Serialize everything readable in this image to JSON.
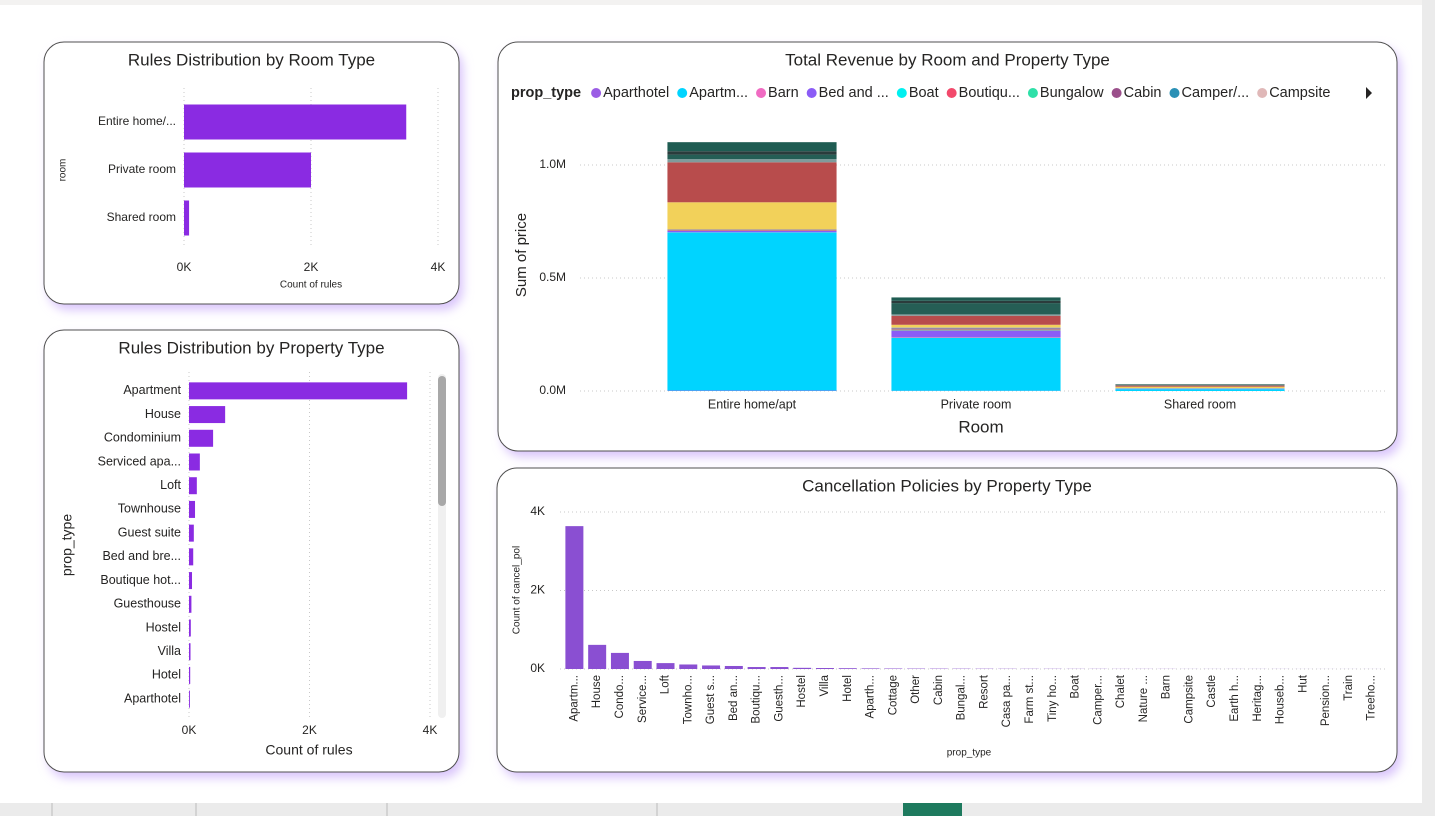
{
  "chart_data": [
    {
      "type": "bar",
      "orientation": "horizontal",
      "title": "Rules Distribution by Room Type",
      "categories": [
        "Entire home/...",
        "Private room",
        "Shared room"
      ],
      "values": [
        3500,
        2000,
        80
      ],
      "color": "#8a2be2",
      "xlim": [
        0,
        4000
      ],
      "xticks": [
        {
          "value": 0,
          "label": "0K"
        },
        {
          "value": 2000,
          "label": "2K"
        },
        {
          "value": 4000,
          "label": "4K"
        }
      ],
      "x_label": "Count of rules",
      "y_label": "room",
      "grid": true
    },
    {
      "type": "bar",
      "orientation": "horizontal",
      "title": "Rules Distribution by Property Type",
      "categories": [
        "Apartment",
        "House",
        "Condominium",
        "Serviced apa...",
        "Loft",
        "Townhouse",
        "Guest suite",
        "Bed and bre...",
        "Boutique hot...",
        "Guesthouse",
        "Hostel",
        "Villa",
        "Hotel",
        "Aparthotel"
      ],
      "values": [
        3620,
        600,
        400,
        180,
        130,
        100,
        80,
        70,
        50,
        40,
        30,
        25,
        20,
        15
      ],
      "color": "#8a2be2",
      "xlim": [
        0,
        4000
      ],
      "xticks": [
        {
          "value": 0,
          "label": "0K"
        },
        {
          "value": 2000,
          "label": "2K"
        },
        {
          "value": 4000,
          "label": "4K"
        }
      ],
      "x_label": "Count of rules",
      "y_label": "prop_type",
      "grid": true
    },
    {
      "type": "bar",
      "orientation": "vertical",
      "stacked": true,
      "title": "Total Revenue by Room and Property Type",
      "legend_title": "prop_type",
      "categories": [
        "Entire home/apt",
        "Private room",
        "Shared room"
      ],
      "series": [
        {
          "name": "Aparthotel",
          "color": "#9b5de5",
          "values": [
            2000,
            1000,
            0
          ]
        },
        {
          "name": "Apartm...",
          "color": "#00d4ff",
          "values": [
            700000,
            235000,
            8000
          ]
        },
        {
          "name": "Barn",
          "color": "#f06bc2",
          "values": [
            1000,
            3000,
            0
          ]
        },
        {
          "name": "Bed and ...",
          "color": "#8b5cf6",
          "values": [
            5000,
            27000,
            2000
          ]
        },
        {
          "name": "Boat",
          "color": "#00f0f0",
          "values": [
            0,
            2000,
            1000
          ]
        },
        {
          "name": "Boutiqu...",
          "color": "#f2496b",
          "values": [
            3000,
            5000,
            0
          ]
        },
        {
          "name": "Bungalow",
          "color": "#2ee0a8",
          "values": [
            1000,
            2000,
            500
          ]
        },
        {
          "name": "Cabin",
          "color": "#9b4f8b",
          "values": [
            2000,
            3000,
            1000
          ]
        },
        {
          "name": "Camper/...",
          "color": "#2a90b5",
          "values": [
            1000,
            2000,
            0
          ]
        },
        {
          "name": "Campsite",
          "color": "#e0b8b8",
          "values": [
            0,
            1000,
            500
          ]
        },
        {
          "color": "#f2d15a",
          "values": [
            120000,
            12000,
            6000
          ]
        },
        {
          "color": "#b84c4c",
          "values": [
            177000,
            40000,
            5000
          ]
        },
        {
          "color": "#7f9c9c",
          "values": [
            14000,
            6000,
            1000
          ]
        },
        {
          "color": "#255e55",
          "values": [
            20000,
            50000,
            2000
          ]
        },
        {
          "color": "#2b3c3c",
          "values": [
            15000,
            10000,
            1000
          ]
        },
        {
          "color": "#1f5c52",
          "values": [
            40000,
            15000,
            2000
          ]
        }
      ],
      "ylim": [
        0,
        1250000
      ],
      "yticks": [
        {
          "value": 0,
          "label": "0.0M"
        },
        {
          "value": 500000,
          "label": "0.5M"
        },
        {
          "value": 1000000,
          "label": "1.0M"
        }
      ],
      "x_label": "Room",
      "y_label": "Sum of price",
      "grid": true
    },
    {
      "type": "bar",
      "orientation": "vertical",
      "title": "Cancellation Policies by Property Type",
      "categories": [
        "Apartm...",
        "House",
        "Condo...",
        "Service...",
        "Loft",
        "Townho...",
        "Guest s...",
        "Bed an...",
        "Boutiqu...",
        "Guesth...",
        "Hostel",
        "Villa",
        "Hotel",
        "Aparth...",
        "Cottage",
        "Other",
        "Cabin",
        "Bungal...",
        "Resort",
        "Casa pa...",
        "Farm st...",
        "Tiny ho...",
        "Boat",
        "Camper...",
        "Chalet",
        "Nature ...",
        "Barn",
        "Campsite",
        "Castle",
        "Earth h...",
        "Heritag...",
        "Houseb...",
        "Hut",
        "Pension...",
        "Train",
        "Treeho..."
      ],
      "values": [
        3640,
        615,
        410,
        205,
        150,
        115,
        90,
        77,
        50,
        50,
        30,
        25,
        20,
        15,
        12,
        10,
        9,
        8,
        7,
        6,
        5,
        5,
        4,
        4,
        3,
        3,
        3,
        2,
        2,
        2,
        2,
        2,
        1,
        1,
        1,
        1
      ],
      "color": "#8a4fd2",
      "ylim": [
        0,
        4000
      ],
      "yticks": [
        {
          "value": 0,
          "label": "0K"
        },
        {
          "value": 2000,
          "label": "2K"
        },
        {
          "value": 4000,
          "label": "4K"
        }
      ],
      "x_label": "prop_type",
      "y_label": "Count of cancel_pol",
      "grid": true
    }
  ]
}
